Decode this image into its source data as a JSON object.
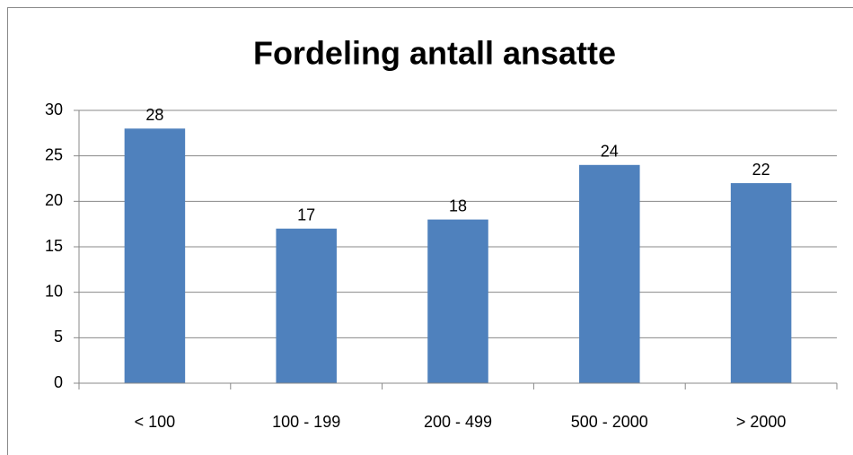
{
  "chart_data": {
    "type": "bar",
    "title": "Fordeling antall ansatte",
    "categories": [
      "< 100",
      "100 - 199",
      "200 - 499",
      "500 - 2000",
      "> 2000"
    ],
    "values": [
      28,
      17,
      18,
      24,
      22
    ],
    "color": "#4f81bd",
    "ylim": [
      0,
      30
    ],
    "yticks": [
      0,
      5,
      10,
      15,
      20,
      25,
      30
    ],
    "grid": true
  }
}
